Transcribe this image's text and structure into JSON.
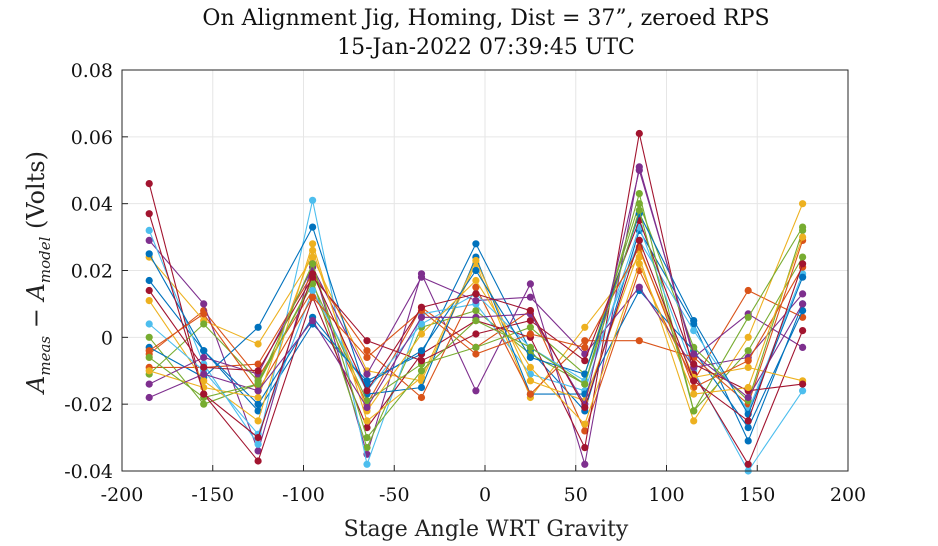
{
  "chart_data": {
    "type": "line",
    "title_line1": "On Alignment Jig, Homing, Dist = 37”, zeroed RPS",
    "title_line2": "15-Jan-2022 07:39:45 UTC",
    "xlabel": "Stage Angle WRT Gravity",
    "ylabel": {
      "a": "A",
      "meas": "meas",
      "minus": " − ",
      "model": "model",
      "units": " (Volts)"
    },
    "xlim": [
      -200,
      200
    ],
    "ylim": [
      -0.04,
      0.08
    ],
    "xticks": [
      "-200",
      "-150",
      "-100",
      "-50",
      "0",
      "50",
      "100",
      "150",
      "200"
    ],
    "yticks": [
      "-0.04",
      "-0.02",
      "0",
      "0.02",
      "0.04",
      "0.06",
      "0.08"
    ],
    "grid": true,
    "x": [
      -185,
      -155,
      -125,
      -95,
      -65,
      -35,
      -5,
      25,
      55,
      85,
      115,
      145,
      175
    ],
    "series": [
      {
        "color": "#0072BD",
        "values": [
          0.017,
          -0.004,
          -0.022,
          0.004,
          -0.013,
          -0.005,
          0.028,
          -0.004,
          -0.022,
          0.032,
          0.004,
          -0.031,
          0.01
        ]
      },
      {
        "color": "#D95319",
        "values": [
          -0.005,
          0.008,
          -0.012,
          0.014,
          -0.02,
          0.009,
          -0.003,
          0.008,
          -0.028,
          0.02,
          -0.013,
          0.014,
          0.006
        ]
      },
      {
        "color": "#EDB120",
        "values": [
          0.024,
          0.005,
          -0.002,
          0.024,
          -0.01,
          -0.013,
          0.022,
          -0.018,
          0.003,
          0.024,
          -0.025,
          0.0,
          0.04
        ]
      },
      {
        "color": "#7E2F8E",
        "values": [
          0.029,
          0.01,
          -0.034,
          0.022,
          -0.035,
          0.019,
          -0.016,
          0.016,
          -0.038,
          0.051,
          -0.006,
          0.007,
          -0.003
        ]
      },
      {
        "color": "#77AC30",
        "values": [
          0.0,
          -0.02,
          -0.014,
          0.017,
          -0.033,
          0.003,
          0.008,
          -0.005,
          -0.014,
          0.043,
          -0.022,
          -0.004,
          0.024
        ]
      },
      {
        "color": "#4DBEEE",
        "values": [
          0.032,
          -0.008,
          -0.032,
          0.041,
          -0.038,
          0.007,
          0.01,
          -0.011,
          -0.016,
          0.033,
          -0.01,
          -0.04,
          -0.016
        ]
      },
      {
        "color": "#A2142F",
        "values": [
          0.046,
          -0.017,
          -0.037,
          0.012,
          -0.027,
          -0.005,
          0.005,
          0.0,
          -0.033,
          0.061,
          -0.011,
          -0.038,
          0.002
        ]
      },
      {
        "color": "#0072BD",
        "values": [
          -0.003,
          -0.012,
          0.003,
          0.033,
          -0.017,
          -0.015,
          0.024,
          -0.017,
          -0.017,
          0.014,
          -0.004,
          -0.027,
          0.008
        ]
      },
      {
        "color": "#D95319",
        "values": [
          -0.009,
          -0.009,
          -0.008,
          0.019,
          -0.004,
          -0.018,
          0.015,
          -0.017,
          -0.001,
          -0.001,
          -0.006,
          -0.02,
          0.029
        ]
      },
      {
        "color": "#EDB120",
        "values": [
          0.011,
          -0.013,
          -0.025,
          0.028,
          -0.025,
          -0.012,
          0.023,
          -0.013,
          -0.019,
          0.026,
          -0.012,
          -0.009,
          -0.013
        ]
      },
      {
        "color": "#7E2F8E",
        "values": [
          -0.014,
          -0.006,
          -0.011,
          0.021,
          -0.011,
          0.018,
          0.011,
          0.012,
          -0.005,
          0.015,
          -0.009,
          -0.006,
          0.013
        ]
      },
      {
        "color": "#77AC30",
        "values": [
          -0.011,
          0.004,
          -0.013,
          0.016,
          -0.019,
          -0.008,
          -0.003,
          0.003,
          -0.011,
          0.04,
          -0.003,
          -0.019,
          0.032
        ]
      },
      {
        "color": "#4DBEEE",
        "values": [
          0.004,
          -0.01,
          -0.029,
          0.014,
          -0.016,
          0.004,
          0.013,
          -0.003,
          -0.013,
          0.029,
          0.002,
          -0.022,
          0.019
        ]
      },
      {
        "color": "#A2142F",
        "values": [
          0.014,
          -0.009,
          -0.01,
          0.018,
          -0.001,
          -0.007,
          0.001,
          0.005,
          -0.007,
          0.035,
          -0.008,
          -0.016,
          -0.014
        ]
      },
      {
        "color": "#0072BD",
        "values": [
          0.025,
          -0.004,
          -0.02,
          0.006,
          -0.014,
          -0.004,
          0.02,
          -0.006,
          -0.011,
          0.037,
          0.005,
          -0.023,
          0.018
        ]
      },
      {
        "color": "#D95319",
        "values": [
          -0.004,
          0.007,
          -0.016,
          0.012,
          -0.006,
          0.008,
          -0.005,
          0.001,
          -0.003,
          0.027,
          -0.015,
          -0.007,
          0.021
        ]
      },
      {
        "color": "#EDB120",
        "values": [
          -0.01,
          -0.015,
          -0.018,
          0.026,
          -0.022,
          0.001,
          0.017,
          -0.009,
          -0.026,
          0.022,
          -0.017,
          -0.015,
          0.03
        ]
      },
      {
        "color": "#7E2F8E",
        "values": [
          -0.018,
          -0.011,
          -0.016,
          0.005,
          -0.021,
          0.006,
          0.006,
          0.007,
          -0.02,
          0.05,
          -0.005,
          -0.018,
          0.01
        ]
      },
      {
        "color": "#77AC30",
        "values": [
          -0.006,
          -0.018,
          -0.014,
          0.022,
          -0.03,
          -0.01,
          0.005,
          -0.003,
          -0.014,
          0.038,
          -0.022,
          0.006,
          0.033
        ]
      },
      {
        "color": "#A2142F",
        "values": [
          0.037,
          -0.017,
          -0.03,
          0.019,
          -0.016,
          0.009,
          0.013,
          0.008,
          -0.021,
          0.029,
          -0.013,
          -0.025,
          0.022
        ]
      }
    ]
  }
}
